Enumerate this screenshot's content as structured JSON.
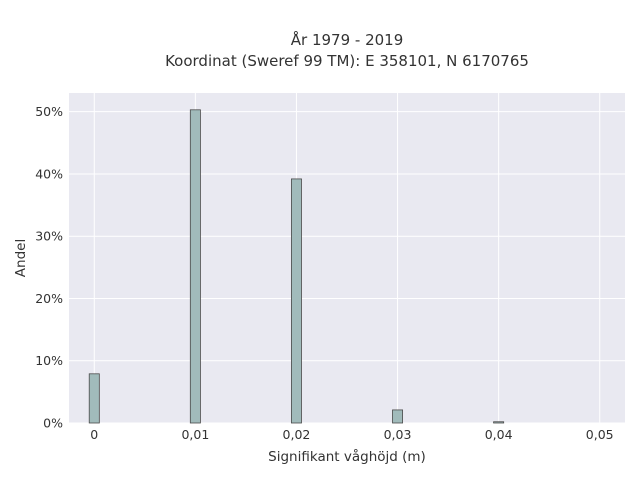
{
  "chart_data": {
    "type": "bar",
    "title_lines": [
      "År 1979 - 2019",
      "Koordinat (Sweref 99 TM): E 358101, N 6170765"
    ],
    "xlabel": "Signifikant våghöjd (m)",
    "ylabel": "Andel",
    "x": [
      0,
      0.01,
      0.02,
      0.03,
      0.04
    ],
    "values": [
      7.9,
      50.3,
      39.2,
      2.1,
      0.2
    ],
    "bar_width": 0.001,
    "xlim": [
      -0.0025,
      0.0525
    ],
    "ylim": [
      0,
      53
    ],
    "x_ticks": [
      0,
      0.01,
      0.02,
      0.03,
      0.04,
      0.05
    ],
    "x_tick_labels": [
      "0",
      "0,01",
      "0,02",
      "0,03",
      "0,04",
      "0,05"
    ],
    "y_ticks": [
      0,
      10,
      20,
      30,
      40,
      50
    ],
    "y_tick_labels": [
      "0%",
      "10%",
      "20%",
      "30%",
      "40%",
      "50%"
    ],
    "grid": true,
    "colors": {
      "plot_background": "#e9e9f1",
      "grid": "#ffffff",
      "bar_fill": "#a1bbbb",
      "bar_stroke": "#4a4a4a",
      "text": "#333333"
    }
  }
}
